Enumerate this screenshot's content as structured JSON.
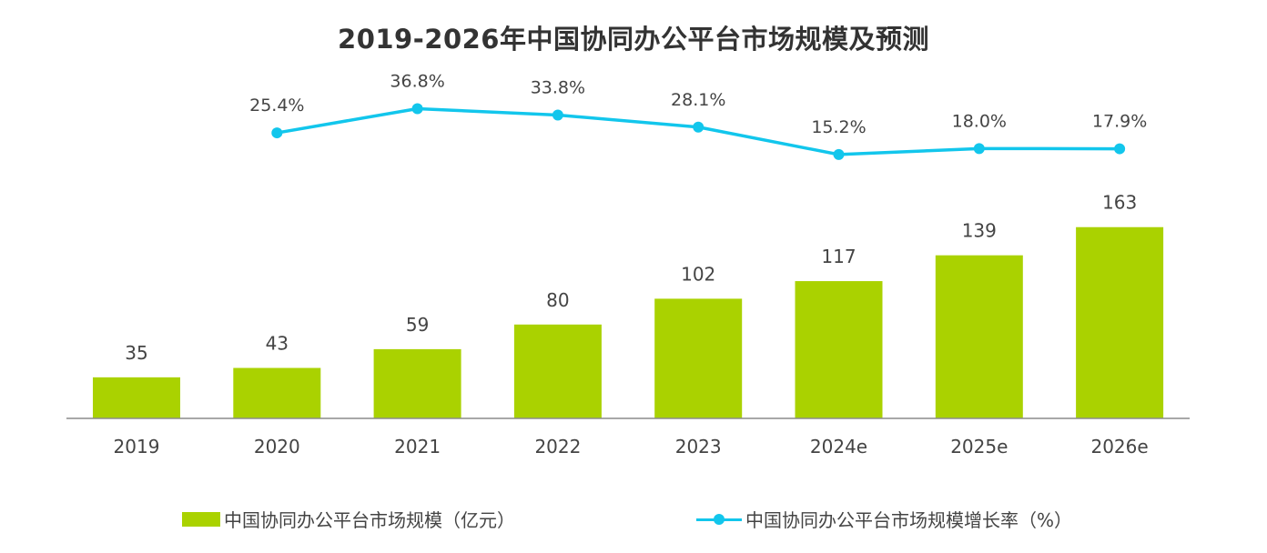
{
  "chart_data": {
    "type": "bar",
    "title": "2019-2026年中国协同办公平台市场规模及预测",
    "categories": [
      "2019",
      "2020",
      "2021",
      "2022",
      "2023",
      "2024e",
      "2025e",
      "2026e"
    ],
    "series": [
      {
        "name": "中国协同办公平台市场规模（亿元）",
        "type": "bar",
        "color": "#aad200",
        "values": [
          35,
          43,
          59,
          80,
          102,
          117,
          139,
          163
        ]
      },
      {
        "name": "中国协同办公平台市场规模增长率（%）",
        "type": "line",
        "color": "#12c6ec",
        "values": [
          null,
          25.4,
          36.8,
          33.8,
          28.1,
          15.2,
          18.0,
          17.9
        ],
        "labels": [
          "",
          "25.4%",
          "36.8%",
          "33.8%",
          "28.1%",
          "15.2%",
          "18.0%",
          "17.9%"
        ]
      }
    ],
    "xlabel": "",
    "ylabel": "",
    "grid": false,
    "legend": "bottom"
  }
}
